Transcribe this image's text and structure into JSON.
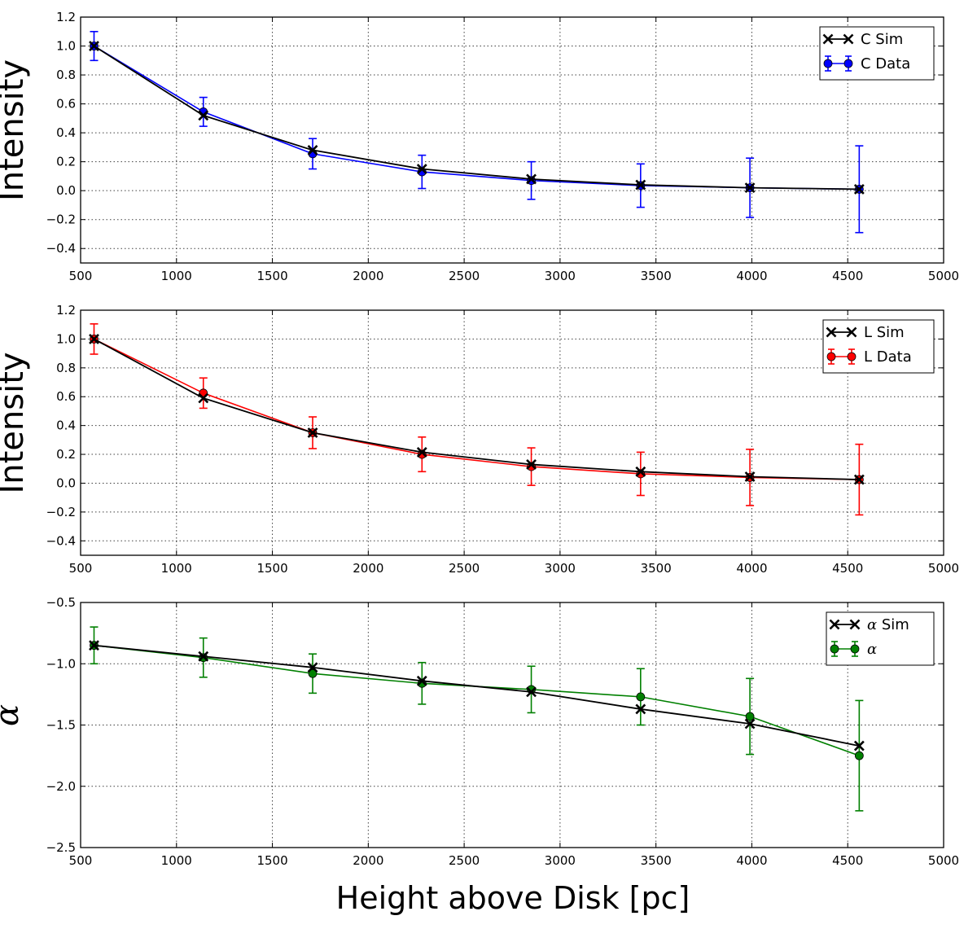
{
  "chart_data": [
    {
      "type": "line",
      "ylabel": "Intensity",
      "xlim": [
        500,
        5000
      ],
      "ylim": [
        -0.5,
        1.2
      ],
      "xticks": [
        "500",
        "1000",
        "1500",
        "2000",
        "2500",
        "3000",
        "3500",
        "4000",
        "4500",
        "5000"
      ],
      "yticks": [
        "1.2",
        "1.0",
        "0.8",
        "0.6",
        "0.4",
        "0.2",
        "0.0",
        "−0.2",
        "−0.4"
      ],
      "ytick_values": [
        1.2,
        1.0,
        0.8,
        0.6,
        0.4,
        0.2,
        0.0,
        -0.2,
        -0.4
      ],
      "grid": true,
      "legend_position": "top-right",
      "x": [
        570,
        1140,
        1710,
        2280,
        2850,
        3420,
        3990,
        4560
      ],
      "series": [
        {
          "name": "C Sim",
          "marker": "x",
          "color": "#000000",
          "values": [
            1.0,
            0.52,
            0.28,
            0.15,
            0.08,
            0.04,
            0.02,
            0.01
          ]
        },
        {
          "name": "C Data",
          "marker": "o",
          "color": "#0000ff",
          "values": [
            1.0,
            0.545,
            0.255,
            0.13,
            0.07,
            0.035,
            0.02,
            0.01
          ],
          "err": [
            0.1,
            0.1,
            0.105,
            0.115,
            0.13,
            0.15,
            0.205,
            0.3
          ]
        }
      ]
    },
    {
      "type": "line",
      "ylabel": "Intensity",
      "xlim": [
        500,
        5000
      ],
      "ylim": [
        -0.5,
        1.2
      ],
      "xticks": [
        "500",
        "1000",
        "1500",
        "2000",
        "2500",
        "3000",
        "3500",
        "4000",
        "4500",
        "5000"
      ],
      "yticks": [
        "1.2",
        "1.0",
        "0.8",
        "0.6",
        "0.4",
        "0.2",
        "0.0",
        "−0.2",
        "−0.4"
      ],
      "ytick_values": [
        1.2,
        1.0,
        0.8,
        0.6,
        0.4,
        0.2,
        0.0,
        -0.2,
        -0.4
      ],
      "grid": true,
      "legend_position": "top-right",
      "x": [
        570,
        1140,
        1710,
        2280,
        2850,
        3420,
        3990,
        4560
      ],
      "series": [
        {
          "name": "L Sim",
          "marker": "x",
          "color": "#000000",
          "values": [
            1.0,
            0.59,
            0.35,
            0.215,
            0.13,
            0.08,
            0.045,
            0.025
          ]
        },
        {
          "name": "L Data",
          "marker": "o",
          "color": "#ff0000",
          "values": [
            1.0,
            0.625,
            0.35,
            0.2,
            0.115,
            0.065,
            0.04,
            0.025
          ],
          "err": [
            0.105,
            0.105,
            0.11,
            0.12,
            0.13,
            0.15,
            0.195,
            0.245
          ]
        }
      ]
    },
    {
      "type": "line",
      "ylabel": "α",
      "xlim": [
        500,
        5000
      ],
      "ylim": [
        -2.5,
        -0.5
      ],
      "xticks": [
        "500",
        "1000",
        "1500",
        "2000",
        "2500",
        "3000",
        "3500",
        "4000",
        "4500",
        "5000"
      ],
      "yticks": [
        "−0.5",
        "−1.0",
        "−1.5",
        "−2.0",
        "−2.5"
      ],
      "ytick_values": [
        -0.5,
        -1.0,
        -1.5,
        -2.0,
        -2.5
      ],
      "grid": true,
      "legend_position": "top-right",
      "x": [
        570,
        1140,
        1710,
        2280,
        2850,
        3420,
        3990,
        4560
      ],
      "series": [
        {
          "name": "α Sim",
          "marker": "x",
          "color": "#000000",
          "values": [
            -0.85,
            -0.94,
            -1.03,
            -1.14,
            -1.23,
            -1.37,
            -1.49,
            -1.67
          ]
        },
        {
          "name": "α",
          "marker": "o",
          "color": "#008000",
          "values": [
            -0.85,
            -0.95,
            -1.08,
            -1.16,
            -1.21,
            -1.27,
            -1.43,
            -1.75
          ],
          "err": [
            0.15,
            0.16,
            0.16,
            0.17,
            0.19,
            0.23,
            0.31,
            0.45
          ]
        }
      ]
    }
  ],
  "xlabel": "Height above Disk [pc]"
}
